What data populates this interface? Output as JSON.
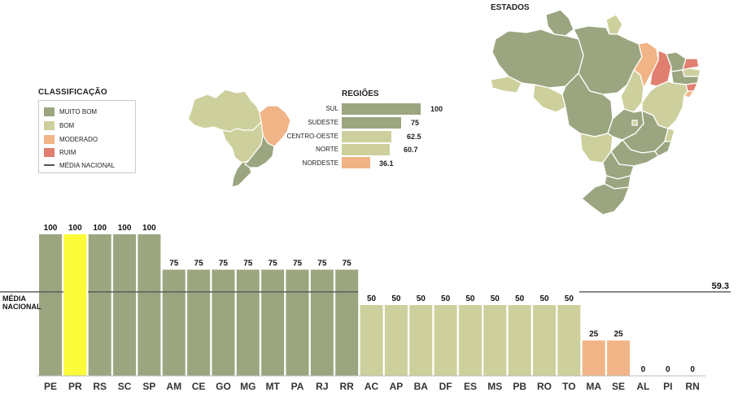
{
  "colors": {
    "muito_bom": "#9ba680",
    "bom": "#cdd09c",
    "moderado": "#f0b486",
    "ruim": "#e07f70",
    "highlight": "#fbfb3a",
    "line": "#555555"
  },
  "legend": {
    "title": "CLASSIFICAÇÃO",
    "items": [
      {
        "label": "MUITO BOM",
        "color": "#9ba680"
      },
      {
        "label": "BOM",
        "color": "#cdd09c"
      },
      {
        "label": "MODERADO",
        "color": "#f0b486"
      },
      {
        "label": "RUIM",
        "color": "#e07f70"
      }
    ],
    "line_label": "MÉDIA NACIONAL"
  },
  "maps": {
    "states_title": "ESTADOS"
  },
  "regions": {
    "title": "REGIÕES",
    "items": [
      {
        "label": "SUL",
        "value": "100",
        "color": "#9ba680"
      },
      {
        "label": "SUDESTE",
        "value": "75",
        "color": "#9ba680"
      },
      {
        "label": "CENTRO-OESTE",
        "value": "62.5",
        "color": "#cdd09c"
      },
      {
        "label": "NORTE",
        "value": "60.7",
        "color": "#cdd09c"
      },
      {
        "label": "NORDESTE",
        "value": "36.1",
        "color": "#f0b486"
      }
    ]
  },
  "chart_data": {
    "type": "bar",
    "categories": [
      "PE",
      "PR",
      "RS",
      "SC",
      "SP",
      "AM",
      "CE",
      "GO",
      "MG",
      "MT",
      "PA",
      "RJ",
      "RR",
      "AC",
      "AP",
      "BA",
      "DF",
      "ES",
      "MS",
      "PB",
      "RO",
      "TO",
      "MA",
      "SE",
      "AL",
      "PI",
      "RN"
    ],
    "values": [
      100,
      100,
      100,
      100,
      100,
      75,
      75,
      75,
      75,
      75,
      75,
      75,
      75,
      50,
      50,
      50,
      50,
      50,
      50,
      50,
      50,
      50,
      25,
      25,
      0,
      0,
      0
    ],
    "value_labels": [
      "100",
      "100",
      "100",
      "100",
      "100",
      "75",
      "75",
      "75",
      "75",
      "75",
      "75",
      "75",
      "75",
      "50",
      "50",
      "50",
      "50",
      "50",
      "50",
      "50",
      "50",
      "50",
      "25",
      "25",
      "0",
      "0",
      "0"
    ],
    "bar_colors": [
      "#9ba680",
      "#fbfb3a",
      "#9ba680",
      "#9ba680",
      "#9ba680",
      "#9ba680",
      "#9ba680",
      "#9ba680",
      "#9ba680",
      "#9ba680",
      "#9ba680",
      "#9ba680",
      "#9ba680",
      "#cdd09c",
      "#cdd09c",
      "#cdd09c",
      "#cdd09c",
      "#cdd09c",
      "#cdd09c",
      "#cdd09c",
      "#cdd09c",
      "#cdd09c",
      "#f0b486",
      "#f0b486",
      "#e07f70",
      "#e07f70",
      "#e07f70"
    ],
    "reference_line": {
      "label": "MÉDIA NACIONAL",
      "value": 59.3,
      "value_label": "59.3"
    },
    "ylim": [
      0,
      100
    ],
    "grid": false
  }
}
